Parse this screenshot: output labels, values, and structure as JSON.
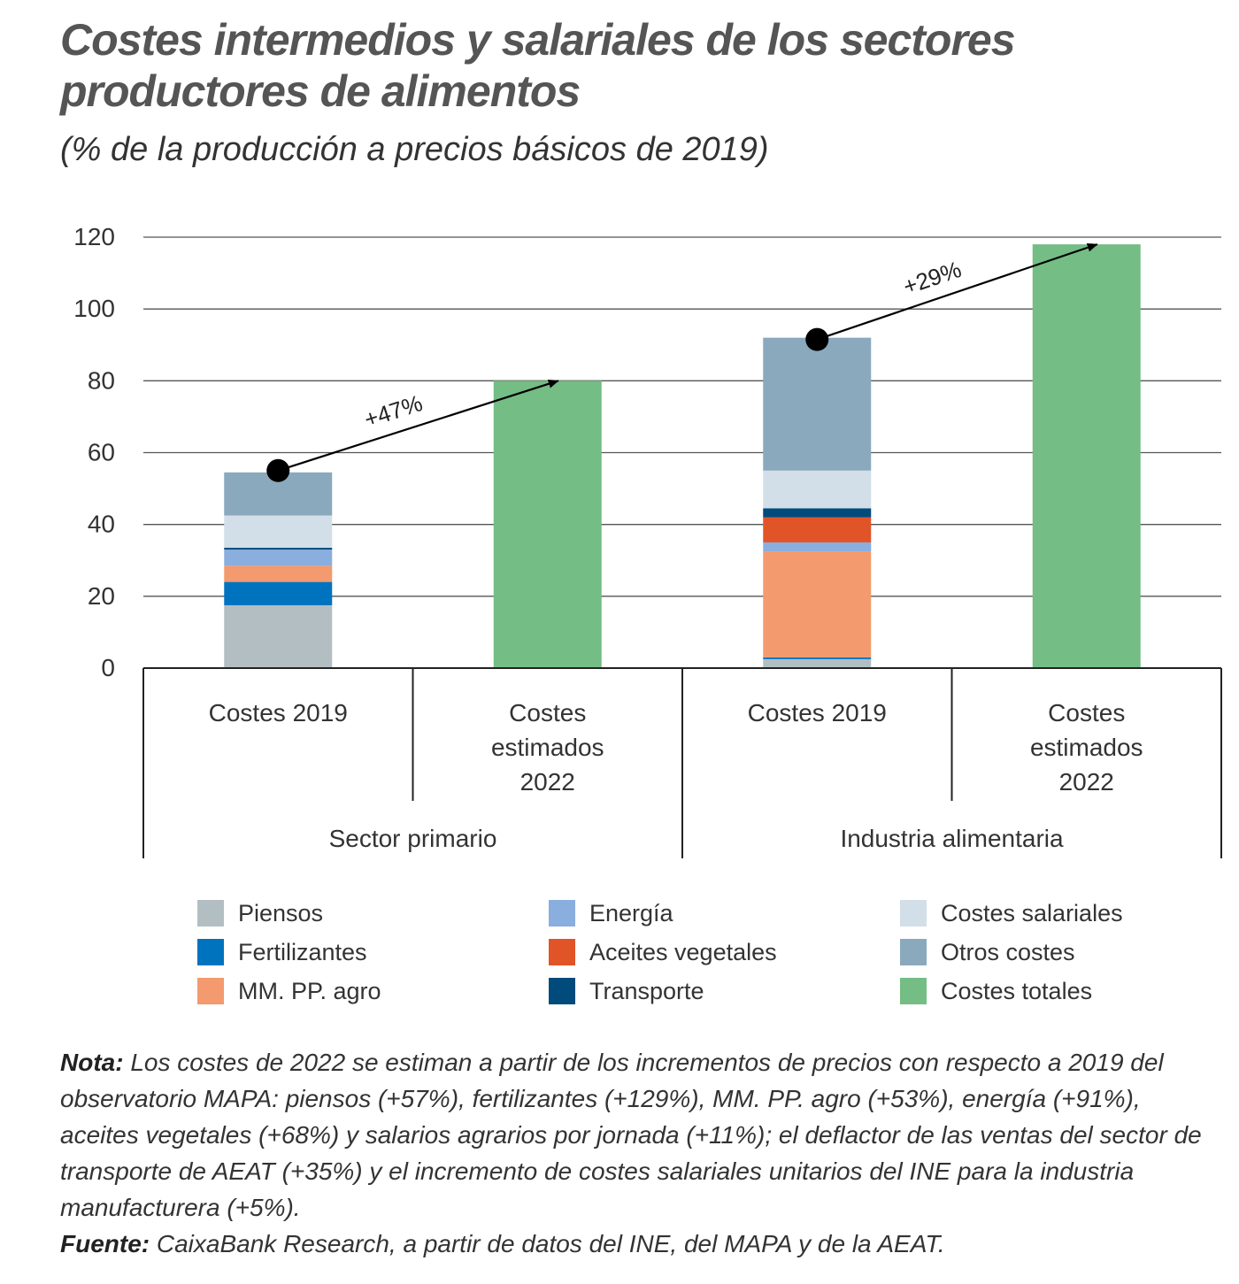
{
  "title": "Costes intermedios y salariales de los sectores productores de alimentos",
  "subtitle": "(% de la producción a precios básicos de 2019)",
  "chart_data": {
    "type": "bar",
    "stacked": true,
    "ylim": [
      0,
      120
    ],
    "yticks": [
      "0",
      "20",
      "40",
      "60",
      "80",
      "100",
      "120"
    ],
    "grid": true,
    "categories": [
      "Costes 2019",
      "Costes estimados 2022",
      "Costes 2019",
      "Costes estimados 2022"
    ],
    "groups": [
      "Sector primario",
      "Industria alimentaria"
    ],
    "series": [
      {
        "name": "Piensos",
        "color": "#b3bec3",
        "values": [
          17.5,
          0,
          2.5,
          0
        ]
      },
      {
        "name": "Fertilizantes",
        "color": "#0073bf",
        "values": [
          6.5,
          0,
          0.5,
          0
        ]
      },
      {
        "name": "MM. PP. agro",
        "color": "#f39a6e",
        "values": [
          4.5,
          0,
          29.5,
          0
        ]
      },
      {
        "name": "Energía",
        "color": "#8aaede",
        "values": [
          4.5,
          0,
          2.5,
          0
        ]
      },
      {
        "name": "Transporte",
        "color": "#004a7c",
        "values": [
          0.5,
          0,
          0,
          0
        ]
      },
      {
        "name": "Costes salariales",
        "color": "#d2dfe8",
        "values": [
          9,
          0,
          0,
          0
        ]
      },
      {
        "name": "Otros costes",
        "color": "#8aa9bd",
        "values": [
          12,
          0,
          0,
          0
        ]
      },
      {
        "name": "Aceites vegetales",
        "color": "#e15427",
        "values": [
          0,
          0,
          7,
          0
        ]
      },
      {
        "name": "Transporte",
        "color": "#004a7c",
        "values": [
          0,
          0,
          2.5,
          0
        ]
      },
      {
        "name": "Costes salariales",
        "color": "#d2dfe8",
        "values": [
          0,
          0,
          10.5,
          0
        ]
      },
      {
        "name": "Otros costes",
        "color": "#8aa9bd",
        "values": [
          0,
          0,
          37,
          0
        ]
      },
      {
        "name": "Costes totales",
        "color": "#74bd85",
        "values": [
          0,
          80,
          0,
          118
        ]
      }
    ],
    "annotations": [
      {
        "text": "+47%",
        "from_category": 0,
        "from_value": 55,
        "to_category": 1,
        "to_value": 80
      },
      {
        "text": "+29%",
        "from_category": 2,
        "from_value": 91.5,
        "to_category": 3,
        "to_value": 118
      }
    ]
  },
  "legend": [
    {
      "label": "Piensos",
      "color": "#b3bec3"
    },
    {
      "label": "Fertilizantes",
      "color": "#0073bf"
    },
    {
      "label": "MM. PP. agro",
      "color": "#f39a6e"
    },
    {
      "label": "Energía",
      "color": "#8aaede"
    },
    {
      "label": "Aceites vegetales",
      "color": "#e15427"
    },
    {
      "label": "Transporte",
      "color": "#004a7c"
    },
    {
      "label": "Costes salariales",
      "color": "#d2dfe8"
    },
    {
      "label": "Otros costes",
      "color": "#8aa9bd"
    },
    {
      "label": "Costes totales",
      "color": "#74bd85"
    }
  ],
  "note": {
    "label": "Nota:",
    "text": " Los costes de 2022 se estiman a partir de los incrementos de precios con respecto a 2019 del observatorio MAPA: piensos (+57%), fertilizantes (+129%), MM. PP. agro (+53%), energía (+91%), aceites vegetales (+68%) y salarios agrarios por jornada (+11%); el deflactor de las ventas del sector de transporte de AEAT (+35%) y el incremento de costes salariales unitarios del INE para la industria manufacturera (+5%)."
  },
  "source": {
    "label": "Fuente:",
    "text": " CaixaBank Research, a partir de datos del INE, del MAPA y de la AEAT."
  }
}
